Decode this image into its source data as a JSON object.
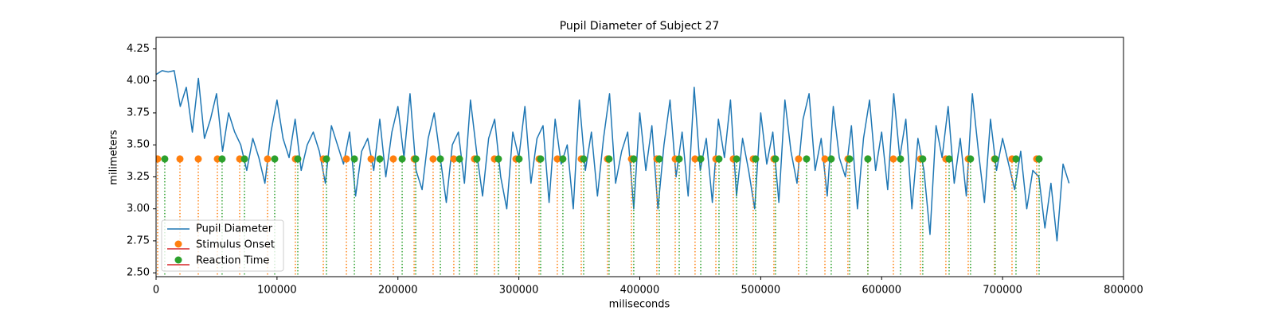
{
  "chart_data": {
    "type": "line",
    "title": "Pupil Diameter of Subject 27",
    "xlabel": "miliseconds",
    "ylabel": "milimeters",
    "xlim": [
      0,
      800000
    ],
    "ylim": [
      2.47,
      4.34
    ],
    "xticks": [
      0,
      100000,
      200000,
      300000,
      400000,
      500000,
      600000,
      700000,
      800000
    ],
    "yticks": [
      {
        "value": 2.5,
        "label": "2.50"
      },
      2.75,
      {
        "value": 3.0,
        "label": "3.00"
      },
      3.25,
      {
        "value": 3.5,
        "label": "3.50"
      },
      3.75,
      {
        "value": 4.0,
        "label": "4.00"
      },
      4.25
    ],
    "legend": "lower left",
    "x": [
      0,
      5000,
      10000,
      15000,
      20000,
      25000,
      30000,
      35000,
      40000,
      45000,
      50000,
      55000,
      60000,
      65000,
      70000,
      75000,
      80000,
      85000,
      90000,
      95000,
      100000,
      105000,
      110000,
      115000,
      120000,
      125000,
      130000,
      135000,
      140000,
      145000,
      150000,
      155000,
      160000,
      165000,
      170000,
      175000,
      180000,
      185000,
      190000,
      195000,
      200000,
      205000,
      210000,
      215000,
      220000,
      225000,
      230000,
      235000,
      240000,
      245000,
      250000,
      255000,
      260000,
      265000,
      270000,
      275000,
      280000,
      285000,
      290000,
      295000,
      300000,
      305000,
      310000,
      315000,
      320000,
      325000,
      330000,
      335000,
      340000,
      345000,
      350000,
      355000,
      360000,
      365000,
      370000,
      375000,
      380000,
      385000,
      390000,
      395000,
      400000,
      405000,
      410000,
      415000,
      420000,
      425000,
      430000,
      435000,
      440000,
      445000,
      450000,
      455000,
      460000,
      465000,
      470000,
      475000,
      480000,
      485000,
      490000,
      495000,
      500000,
      505000,
      510000,
      515000,
      520000,
      525000,
      530000,
      535000,
      540000,
      545000,
      550000,
      555000,
      560000,
      565000,
      570000,
      575000,
      580000,
      585000,
      590000,
      595000,
      600000,
      605000,
      610000,
      615000,
      620000,
      625000,
      630000,
      635000,
      640000,
      645000,
      650000,
      655000,
      660000,
      665000,
      670000,
      675000,
      680000,
      685000,
      690000,
      695000,
      700000,
      705000,
      710000,
      715000,
      720000,
      725000,
      730000,
      735000,
      740000,
      745000,
      750000,
      755000
    ],
    "series": [
      {
        "name": "Pupil Diameter",
        "type": "line",
        "color": "#1f77b4",
        "values": [
          4.05,
          4.08,
          4.07,
          4.08,
          3.8,
          3.95,
          3.6,
          4.02,
          3.55,
          3.7,
          3.9,
          3.45,
          3.75,
          3.6,
          3.5,
          3.3,
          3.55,
          3.4,
          3.2,
          3.6,
          3.85,
          3.55,
          3.4,
          3.7,
          3.3,
          3.5,
          3.6,
          3.45,
          3.2,
          3.65,
          3.5,
          3.35,
          3.6,
          3.1,
          3.45,
          3.55,
          3.3,
          3.7,
          3.25,
          3.6,
          3.8,
          3.4,
          3.9,
          3.3,
          3.15,
          3.55,
          3.75,
          3.4,
          3.05,
          3.5,
          3.6,
          3.2,
          3.85,
          3.45,
          3.1,
          3.55,
          3.7,
          3.25,
          3.0,
          3.6,
          3.4,
          3.8,
          3.2,
          3.55,
          3.65,
          3.05,
          3.7,
          3.35,
          3.5,
          3.0,
          3.85,
          3.3,
          3.6,
          3.1,
          3.55,
          3.9,
          3.2,
          3.45,
          3.6,
          3.0,
          3.75,
          3.3,
          3.65,
          3.0,
          3.5,
          3.85,
          3.25,
          3.6,
          3.1,
          3.95,
          3.3,
          3.55,
          3.05,
          3.7,
          3.4,
          3.85,
          3.1,
          3.55,
          3.3,
          3.0,
          3.75,
          3.35,
          3.6,
          3.05,
          3.85,
          3.45,
          3.2,
          3.7,
          3.9,
          3.3,
          3.55,
          3.1,
          3.8,
          3.4,
          3.25,
          3.65,
          3.0,
          3.55,
          3.85,
          3.3,
          3.6,
          3.15,
          3.9,
          3.4,
          3.7,
          3.0,
          3.55,
          3.3,
          2.8,
          3.65,
          3.4,
          3.8,
          3.2,
          3.55,
          3.1,
          3.9,
          3.45,
          3.05,
          3.7,
          3.3,
          3.55,
          3.35,
          3.15,
          3.45,
          3.0,
          3.3,
          3.25,
          2.85,
          3.2,
          2.75,
          3.35,
          3.2
        ]
      },
      {
        "name": "Stimulus Onset",
        "type": "stem",
        "color": "#ff7f0e",
        "baseline_color": "#d62728",
        "x": [
          1300,
          19750,
          34900,
          50700,
          69150,
          92200,
          115200,
          138300,
          157400,
          177800,
          196200,
          213400,
          229100,
          246200,
          263300,
          279800,
          297600,
          316700,
          331800,
          351600,
          373300,
          393100,
          414100,
          429300,
          445700,
          462900,
          477300,
          493800,
          510900,
          531300,
          553100,
          572100,
          588600,
          609700,
          632100,
          653100,
          671600,
          693300,
          707800,
          728200
        ],
        "values": [
          3.39,
          3.39,
          3.39,
          3.39,
          3.39,
          3.39,
          3.39,
          3.39,
          3.39,
          3.39,
          3.39,
          3.39,
          3.39,
          3.39,
          3.39,
          3.39,
          3.39,
          3.39,
          3.39,
          3.39,
          3.39,
          3.39,
          3.39,
          3.39,
          3.39,
          3.39,
          3.39,
          3.39,
          3.39,
          3.39,
          3.39,
          3.39,
          3.39,
          3.39,
          3.39,
          3.39,
          3.39,
          3.39,
          3.39,
          3.39
        ]
      },
      {
        "name": "Reaction Time",
        "type": "stem",
        "color": "#2ca02c",
        "baseline_color": "#d62728",
        "x": [
          7200,
          54600,
          73100,
          98100,
          117200,
          140900,
          164000,
          185000,
          203500,
          214700,
          235100,
          250900,
          265300,
          283100,
          300200,
          318000,
          336400,
          353600,
          374600,
          395000,
          416100,
          432600,
          450400,
          465500,
          480000,
          495800,
          512200,
          537900,
          558300,
          573500,
          588600,
          615600,
          634000,
          655800,
          673500,
          693900,
          711100,
          730200
        ],
        "values": [
          3.39,
          3.39,
          3.39,
          3.39,
          3.39,
          3.39,
          3.39,
          3.39,
          3.39,
          3.39,
          3.39,
          3.39,
          3.39,
          3.39,
          3.39,
          3.39,
          3.39,
          3.39,
          3.39,
          3.39,
          3.39,
          3.39,
          3.39,
          3.39,
          3.39,
          3.39,
          3.39,
          3.39,
          3.39,
          3.39,
          3.39,
          3.39,
          3.39,
          3.39,
          3.39,
          3.39,
          3.39,
          3.39
        ]
      }
    ]
  }
}
